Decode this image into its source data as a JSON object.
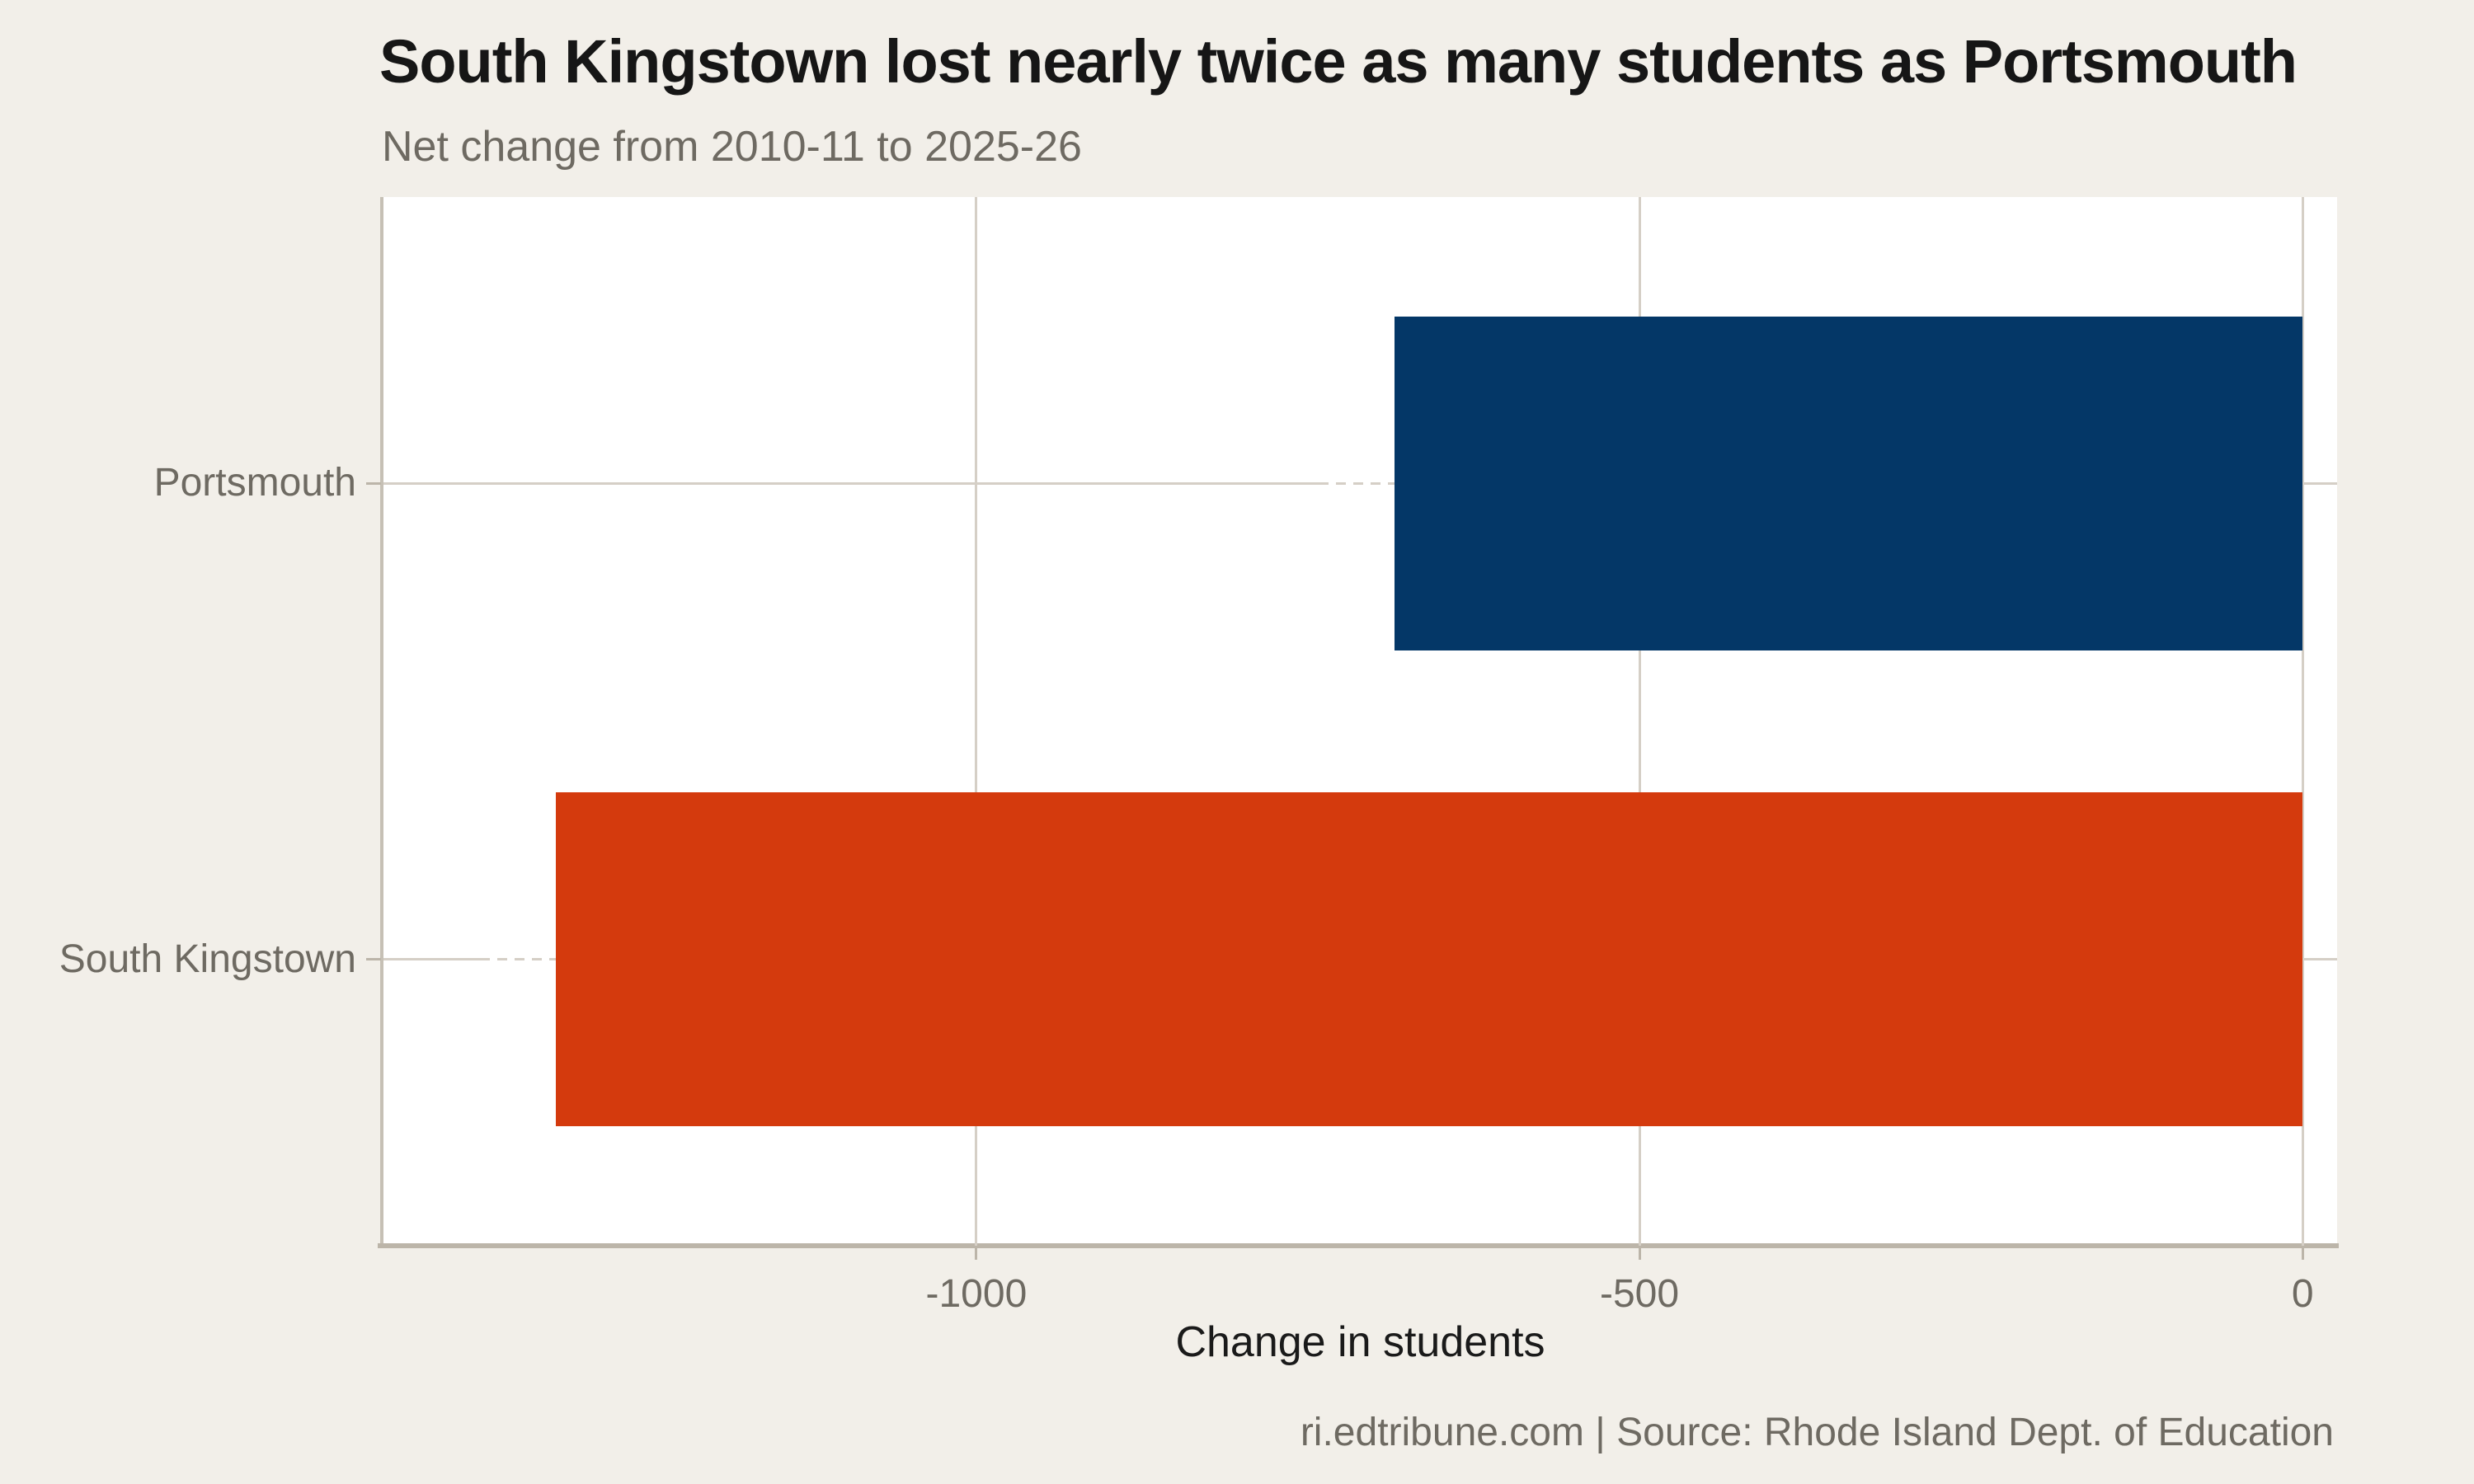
{
  "chart_data": {
    "type": "bar",
    "orientation": "horizontal",
    "title": "South Kingstown lost nearly twice as many students as Portsmouth",
    "subtitle": "Net change from 2010-11 to 2025-26",
    "caption": "ri.edtribune.com | Source: Rhode Island Dept. of Education",
    "xlabel": "Change in students",
    "ylabel": "",
    "categories": [
      "Portsmouth",
      "South Kingstown"
    ],
    "values": [
      -685,
      -1317
    ],
    "bar_colors": [
      "#043767",
      "#d43a0d"
    ],
    "xticks": [
      -1000,
      -500,
      0
    ],
    "xtick_labels": [
      "-1000",
      "-500",
      "0"
    ],
    "xlim": [
      -1447,
      26
    ],
    "grid": true,
    "legend_position": "none",
    "colors": {
      "background": "#f2efe9",
      "panel": "#ffffff",
      "gridline": "#d5cfc6",
      "axis_line": "#bcb5a9",
      "text_dark": "#161616",
      "text_muted": "#6e6a62"
    }
  }
}
